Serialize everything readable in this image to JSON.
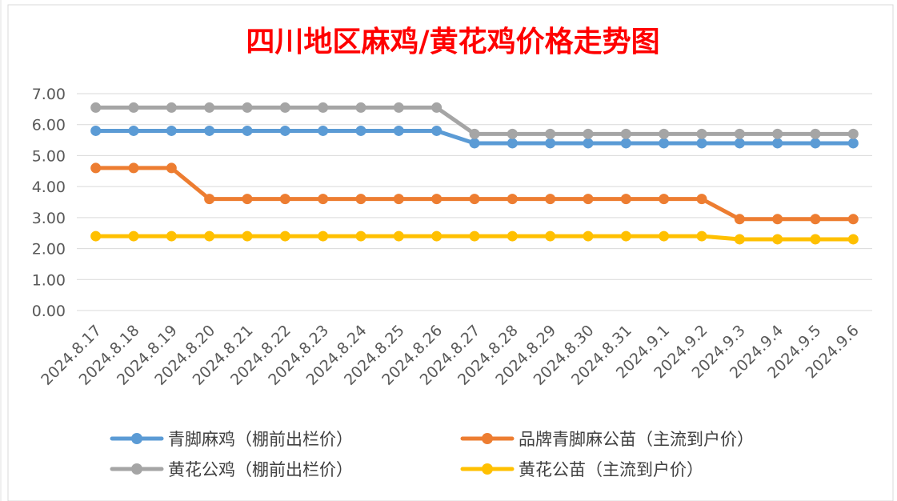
{
  "chart_data": {
    "type": "line",
    "title": "四川地区麻鸡/黄花鸡价格走势图",
    "title_color": "#ff0000",
    "xlabel": "",
    "ylabel": "",
    "ylim": [
      0,
      7
    ],
    "yticks": [
      "0.00",
      "1.00",
      "2.00",
      "3.00",
      "4.00",
      "5.00",
      "6.00",
      "7.00"
    ],
    "grid": true,
    "legend_position": "bottom",
    "categories": [
      "2024.8.17",
      "2024.8.18",
      "2024.8.19",
      "2024.8.20",
      "2024.8.21",
      "2024.8.22",
      "2024.8.23",
      "2024.8.24",
      "2024.8.25",
      "2024.8.26",
      "2024.8.27",
      "2024.8.28",
      "2024.8.29",
      "2024.8.30",
      "2024.8.31",
      "2024.9.1",
      "2024.9.2",
      "2024.9.3",
      "2024.9.4",
      "2024.9.5",
      "2024.9.6"
    ],
    "series": [
      {
        "name": "青脚麻鸡（棚前出栏价）",
        "color": "#5b9bd5",
        "values": [
          5.8,
          5.8,
          5.8,
          5.8,
          5.8,
          5.8,
          5.8,
          5.8,
          5.8,
          5.8,
          5.4,
          5.4,
          5.4,
          5.4,
          5.4,
          5.4,
          5.4,
          5.4,
          5.4,
          5.4,
          5.4
        ]
      },
      {
        "name": "品牌青脚麻公苗（主流到户价）",
        "color": "#ed7d31",
        "values": [
          4.6,
          4.6,
          4.6,
          3.6,
          3.6,
          3.6,
          3.6,
          3.6,
          3.6,
          3.6,
          3.6,
          3.6,
          3.6,
          3.6,
          3.6,
          3.6,
          3.6,
          2.95,
          2.95,
          2.95,
          2.95
        ]
      },
      {
        "name": "黄花公鸡（棚前出栏价）",
        "color": "#a5a5a5",
        "values": [
          6.55,
          6.55,
          6.55,
          6.55,
          6.55,
          6.55,
          6.55,
          6.55,
          6.55,
          6.55,
          5.7,
          5.7,
          5.7,
          5.7,
          5.7,
          5.7,
          5.7,
          5.7,
          5.7,
          5.7,
          5.7
        ]
      },
      {
        "name": "黄花公苗（主流到户价）",
        "color": "#ffc000",
        "values": [
          2.4,
          2.4,
          2.4,
          2.4,
          2.4,
          2.4,
          2.4,
          2.4,
          2.4,
          2.4,
          2.4,
          2.4,
          2.4,
          2.4,
          2.4,
          2.4,
          2.4,
          2.3,
          2.3,
          2.3,
          2.3
        ]
      }
    ]
  }
}
